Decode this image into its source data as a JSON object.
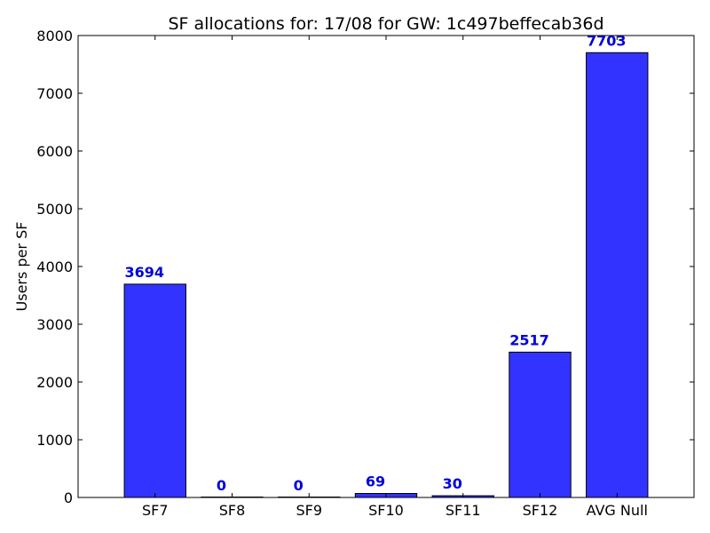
{
  "colors": {
    "bar_fill": "#3333ff",
    "bar_edge": "#000000",
    "data_label": "#0000dd",
    "axis": "#000000",
    "background": "#ffffff"
  },
  "chart_data": {
    "type": "bar",
    "title": "SF allocations for: 17/08 for GW: 1c497beffecab36d",
    "xlabel": "",
    "ylabel": "Users per SF",
    "categories": [
      "SF7",
      "SF8",
      "SF9",
      "SF10",
      "SF11",
      "SF12",
      "AVG Null"
    ],
    "values": [
      3694,
      0,
      0,
      69,
      30,
      2517,
      7703
    ],
    "data_labels": [
      "3694",
      "0",
      "0",
      "69",
      "30",
      "2517",
      "7703"
    ],
    "ylim": [
      0,
      8000
    ],
    "yticks": [
      0,
      1000,
      2000,
      3000,
      4000,
      5000,
      6000,
      7000,
      8000
    ],
    "ytick_labels": [
      "0",
      "1000",
      "2000",
      "3000",
      "4000",
      "5000",
      "6000",
      "7000",
      "8000"
    ],
    "grid": false,
    "legend": "none"
  }
}
